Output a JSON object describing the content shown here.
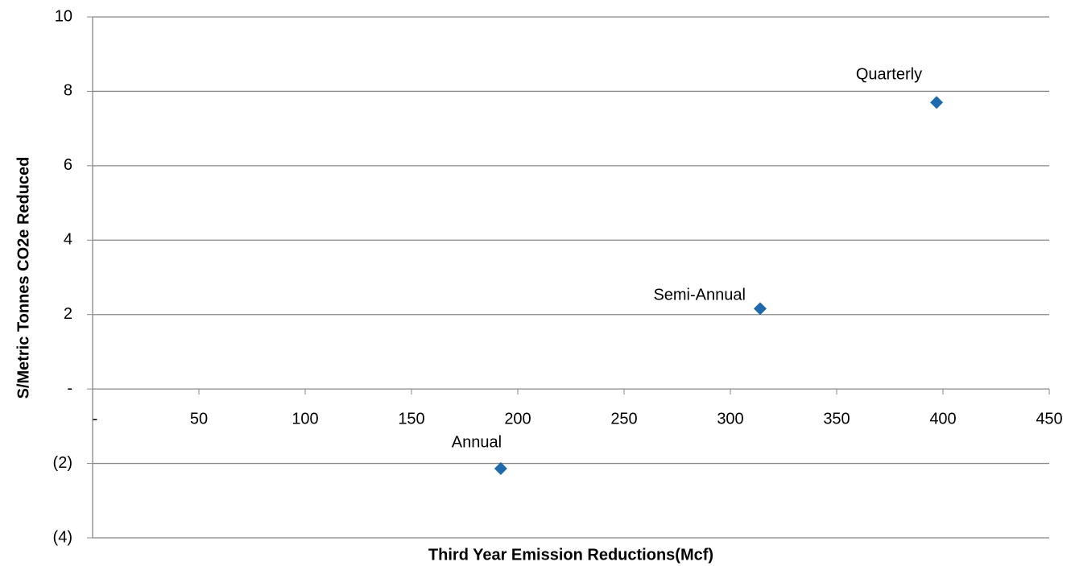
{
  "chart_data": {
    "type": "scatter",
    "x_label": "Third Year Emission Reductions(Mcf)",
    "y_label": "S/Metric Tonnes CO2e Reduced",
    "series": [
      {
        "color": "#1f6aad",
        "x": [
          192,
          314,
          397
        ],
        "values": [
          -2.14,
          2.16,
          7.7
        ],
        "point_labels": [
          "Annual",
          "Semi-Annual",
          "Quarterly"
        ]
      }
    ],
    "xlim": [
      0,
      450
    ],
    "ylim": [
      -4,
      10
    ],
    "xticks": [
      {
        "value": 0,
        "label": "-"
      },
      50,
      100,
      150,
      200,
      250,
      300,
      350,
      400,
      450
    ],
    "yticks": [
      {
        "value": -4,
        "label": "(4)"
      },
      {
        "value": -2,
        "label": "(2)"
      },
      {
        "value": 0,
        "label": "-"
      },
      2,
      4,
      6,
      8,
      10
    ],
    "grid": true
  }
}
